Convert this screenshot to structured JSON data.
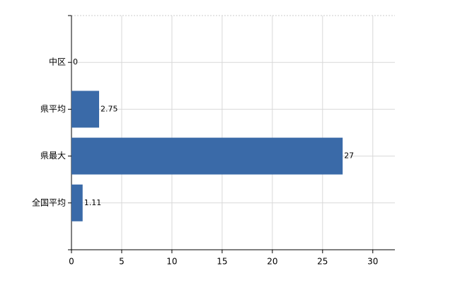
{
  "chart_data": {
    "type": "hbar",
    "categories": [
      "中区",
      "県平均",
      "県最大",
      "全国平均"
    ],
    "values": [
      0,
      2.75,
      27,
      1.11
    ],
    "color": "#3a6aa8",
    "xlim": [
      0,
      32.2
    ],
    "xticks": [
      0,
      5,
      10,
      15,
      20,
      25,
      30
    ],
    "grid": true
  }
}
